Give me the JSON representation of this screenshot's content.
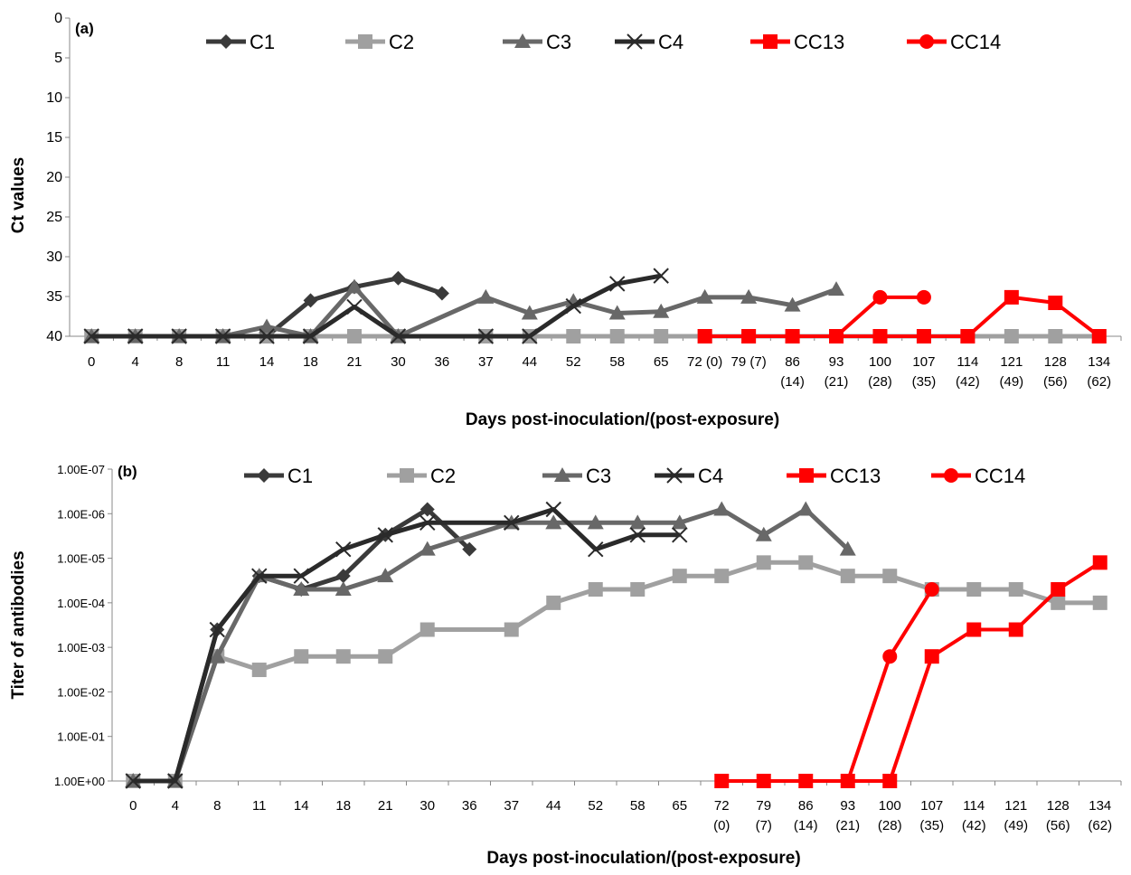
{
  "chart_data": [
    {
      "type": "line",
      "panel_label": "(a)",
      "ylabel": "Ct values",
      "xlabel": "Days post-inoculation/(post-exposure)",
      "y_axis": "inverted",
      "ylim": [
        0,
        40
      ],
      "yticks": [
        "0",
        "5",
        "10",
        "15",
        "20",
        "25",
        "30",
        "35",
        "40"
      ],
      "categories": [
        "0",
        "4",
        "8",
        "11",
        "14",
        "18",
        "21",
        "30",
        "36",
        "37",
        "44",
        "52",
        "58",
        "65",
        "72 (0)",
        "79 (7)",
        "86 (14)",
        "93 (21)",
        "100 (28)",
        "107 (35)",
        "114 (42)",
        "121 (49)",
        "128 (56)",
        "134 (62)"
      ],
      "category_labels": [
        [
          "0"
        ],
        [
          "4"
        ],
        [
          "8"
        ],
        [
          "11"
        ],
        [
          "14"
        ],
        [
          "18"
        ],
        [
          "21"
        ],
        [
          "30"
        ],
        [
          "36"
        ],
        [
          "37"
        ],
        [
          "44"
        ],
        [
          "52"
        ],
        [
          "58"
        ],
        [
          "65"
        ],
        [
          "72 (0)"
        ],
        [
          "79 (7)"
        ],
        [
          "86",
          "(14)"
        ],
        [
          "93",
          "(21)"
        ],
        [
          "100",
          "(28)"
        ],
        [
          "107",
          "(35)"
        ],
        [
          "114",
          "(42)"
        ],
        [
          "121",
          "(49)"
        ],
        [
          "128",
          "(56)"
        ],
        [
          "134",
          "(62)"
        ]
      ],
      "legend_position": "top",
      "series": [
        {
          "name": "C1",
          "color": "#3a3a3a",
          "marker": "diamond",
          "values": [
            40,
            40,
            40,
            40,
            40,
            35.5,
            33.8,
            32.7,
            34.6,
            null,
            null,
            null,
            null,
            null,
            null,
            null,
            null,
            null,
            null,
            null,
            null,
            null,
            null,
            null
          ]
        },
        {
          "name": "C2",
          "color": "#a0a0a0",
          "marker": "square",
          "values": [
            40,
            40,
            40,
            40,
            40,
            40,
            40,
            40,
            null,
            40,
            40,
            40,
            40,
            40,
            40,
            40,
            40,
            40,
            40,
            40,
            40,
            40,
            40,
            40
          ]
        },
        {
          "name": "C3",
          "color": "#686868",
          "marker": "triangle",
          "values": [
            40,
            40,
            40,
            40,
            38.8,
            40,
            33.8,
            40,
            null,
            35.1,
            37.1,
            35.6,
            37.1,
            36.9,
            35.1,
            35.1,
            36.1,
            34.1,
            null,
            null,
            null,
            null,
            null,
            null
          ]
        },
        {
          "name": "C4",
          "color": "#2a2a2a",
          "marker": "x",
          "values": [
            40,
            40,
            40,
            40,
            40,
            40,
            36.3,
            40,
            null,
            40,
            40,
            36.2,
            33.4,
            32.4,
            null,
            null,
            null,
            null,
            null,
            null,
            null,
            null,
            null,
            null
          ]
        },
        {
          "name": "CC13",
          "color": "#ff0000",
          "marker": "square",
          "values": [
            null,
            null,
            null,
            null,
            null,
            null,
            null,
            null,
            null,
            null,
            null,
            null,
            null,
            null,
            40,
            40,
            40,
            40,
            40,
            40,
            40,
            35.1,
            35.8,
            40
          ]
        },
        {
          "name": "CC14",
          "color": "#ff0000",
          "marker": "circle",
          "values": [
            null,
            null,
            null,
            null,
            null,
            null,
            null,
            null,
            null,
            null,
            null,
            null,
            null,
            null,
            null,
            null,
            null,
            40,
            35.1,
            35.1,
            null,
            null,
            null,
            null
          ]
        }
      ]
    },
    {
      "type": "line",
      "panel_label": "(b)",
      "ylabel": "Titer of antibodies",
      "xlabel": "Days post-inoculation/(post-exposure)",
      "y_axis": "log, inverted",
      "ylim": [
        1.0,
        1e-07
      ],
      "yticks": [
        "1.00E-07",
        "1.00E-06",
        "1.00E-05",
        "1.00E-04",
        "1.00E-03",
        "1.00E-02",
        "1.00E-01",
        "1.00E+00"
      ],
      "categories": [
        "0",
        "4",
        "8",
        "11",
        "14",
        "18",
        "21",
        "30",
        "36",
        "37",
        "44",
        "52",
        "58",
        "65",
        "72 (0)",
        "79 (7)",
        "86 (14)",
        "93 (21)",
        "100 (28)",
        "107 (35)",
        "114 (42)",
        "121 (49)",
        "128 (56)",
        "134 (62)"
      ],
      "category_labels": [
        [
          "0"
        ],
        [
          "4"
        ],
        [
          "8"
        ],
        [
          "11"
        ],
        [
          "14"
        ],
        [
          "18"
        ],
        [
          "21"
        ],
        [
          "30"
        ],
        [
          "36"
        ],
        [
          "37"
        ],
        [
          "44"
        ],
        [
          "52"
        ],
        [
          "58"
        ],
        [
          "65"
        ],
        [
          "72",
          "(0)"
        ],
        [
          "79",
          "(7)"
        ],
        [
          "86",
          "(14)"
        ],
        [
          "93",
          "(21)"
        ],
        [
          "100",
          "(28)"
        ],
        [
          "107",
          "(35)"
        ],
        [
          "114",
          "(42)"
        ],
        [
          "121",
          "(49)"
        ],
        [
          "128",
          "(56)"
        ],
        [
          "134",
          "(62)"
        ]
      ],
      "legend_position": "top",
      "series": [
        {
          "name": "C1",
          "color": "#3a3a3a",
          "marker": "diamond",
          "values": [
            1,
            1,
            0.0004,
            2.5e-05,
            5e-05,
            2.5e-05,
            3e-06,
            8e-07,
            6.3e-06,
            null,
            null,
            null,
            null,
            null,
            null,
            null,
            null,
            null,
            null,
            null,
            null,
            null,
            null,
            null
          ]
        },
        {
          "name": "C2",
          "color": "#a0a0a0",
          "marker": "square",
          "values": [
            1,
            1,
            0.0016,
            0.0032,
            0.0016,
            0.0016,
            0.0016,
            0.0004,
            null,
            0.0004,
            0.0001,
            5e-05,
            5e-05,
            2.5e-05,
            2.5e-05,
            1.25e-05,
            1.25e-05,
            2.5e-05,
            2.5e-05,
            5e-05,
            5e-05,
            5e-05,
            0.0001,
            0.0001
          ]
        },
        {
          "name": "C3",
          "color": "#686868",
          "marker": "triangle",
          "values": [
            1,
            1,
            0.0016,
            2.5e-05,
            5e-05,
            5e-05,
            2.5e-05,
            6.3e-06,
            null,
            1.6e-06,
            1.6e-06,
            1.6e-06,
            1.6e-06,
            1.6e-06,
            8e-07,
            3e-06,
            8e-07,
            6.3e-06,
            null,
            null,
            null,
            null,
            null,
            null
          ]
        },
        {
          "name": "C4",
          "color": "#2a2a2a",
          "marker": "x",
          "values": [
            1,
            1,
            0.0004,
            2.5e-05,
            2.5e-05,
            6.3e-06,
            3e-06,
            1.6e-06,
            null,
            1.6e-06,
            8e-07,
            6.3e-06,
            3e-06,
            3e-06,
            null,
            null,
            null,
            null,
            null,
            null,
            null,
            null,
            null,
            null
          ]
        },
        {
          "name": "CC13",
          "color": "#ff0000",
          "marker": "square",
          "values": [
            null,
            null,
            null,
            null,
            null,
            null,
            null,
            null,
            null,
            null,
            null,
            null,
            null,
            null,
            1,
            1,
            1,
            1,
            1,
            0.0016,
            0.0004,
            0.0004,
            5e-05,
            1.25e-05
          ]
        },
        {
          "name": "CC14",
          "color": "#ff0000",
          "marker": "circle",
          "values": [
            null,
            null,
            null,
            null,
            null,
            null,
            null,
            null,
            null,
            null,
            null,
            null,
            null,
            null,
            null,
            null,
            null,
            1,
            0.0016,
            5e-05,
            null,
            null,
            null,
            null
          ]
        }
      ]
    }
  ]
}
